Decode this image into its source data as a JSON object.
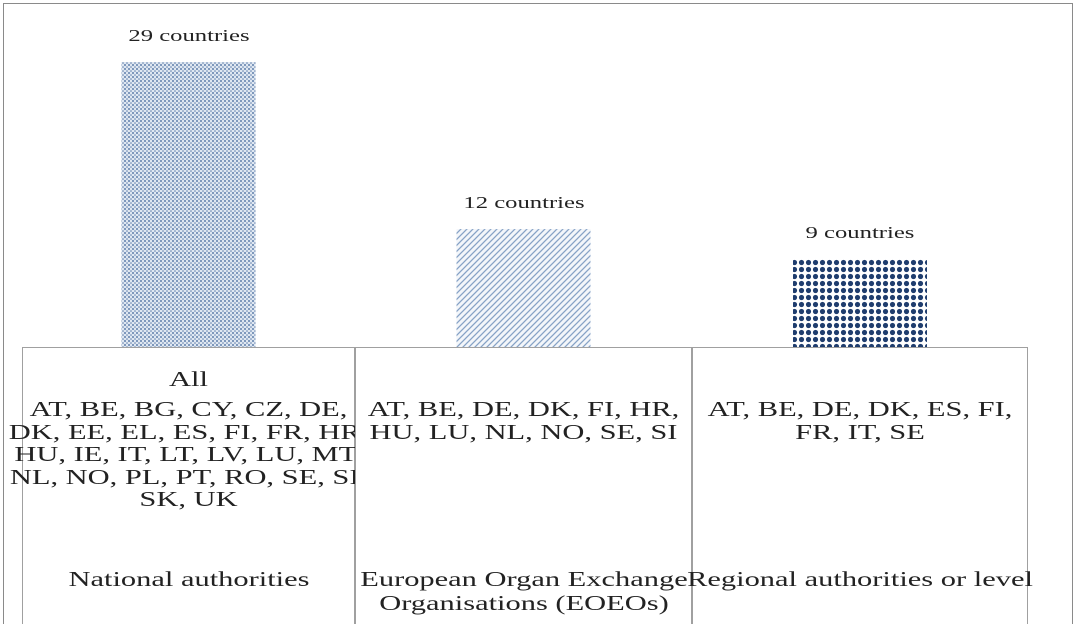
{
  "chart_data": {
    "type": "bar",
    "categories": [
      "National authorities",
      "European Organ Exchange Organisations (EOEOs)",
      "Regional authorities or level"
    ],
    "values": [
      29,
      12,
      9
    ],
    "value_labels": [
      "29 countries",
      "12 countries",
      "9 countries"
    ],
    "colors": [
      "#5f7fab",
      "#86a2c6",
      "#1f3d6e"
    ],
    "scope": [
      "All",
      null,
      null
    ],
    "country_lines": [
      [
        "AT, BE, BG, CY, CZ, DE,",
        "DK, EE, EL, ES, FI, FR, HR,",
        "HU, IE, IT, LT, LV, LU, MT,",
        "NL, NO, PL, PT, RO, SE, SI,",
        "SK, UK"
      ],
      [
        "AT, BE, DE, DK, FI, HR,",
        "HU, LU, NL, NO, SE, SI"
      ],
      [
        "AT, BE, DE, DK, ES, FI,",
        "FR, IT, SE"
      ]
    ]
  }
}
